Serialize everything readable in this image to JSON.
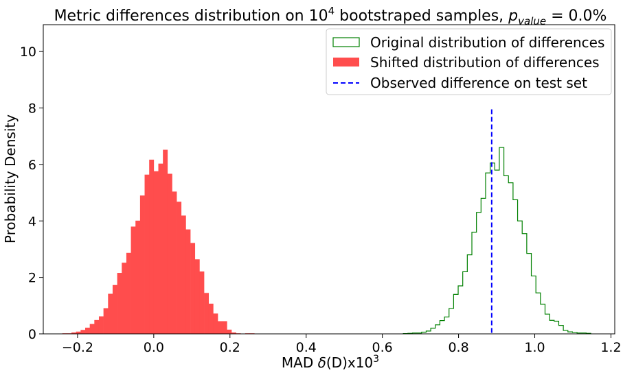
{
  "chart_data": {
    "type": "histogram",
    "title": {
      "prefix": "Metric  differences distribution on 10",
      "sup": "4",
      "mid": " bootstraped samples, ",
      "p": "p",
      "p_sub": "value",
      "suffix": " = 0.0%"
    },
    "xlabel": {
      "prefix": "MAD ",
      "delta": "δ",
      "mid": "(D)x10",
      "sup": "3"
    },
    "ylabel": "Probability Density",
    "xlim": [
      -0.29,
      1.21
    ],
    "ylim": [
      0,
      10.95
    ],
    "x_ticks": [
      -0.2,
      0.0,
      0.2,
      0.4,
      0.6,
      0.8,
      1.0,
      1.2
    ],
    "x_tick_labels": [
      "−0.2",
      "0.0",
      "0.2",
      "0.4",
      "0.6",
      "0.8",
      "1.0",
      "1.2"
    ],
    "y_ticks": [
      0,
      2,
      4,
      6,
      8,
      10
    ],
    "y_tick_labels": [
      "0",
      "2",
      "4",
      "6",
      "8",
      "10"
    ],
    "grid": false,
    "legend_position": "upper-right",
    "legend": [
      "Original distribution of differences",
      "Shifted distribution of differences",
      "Observed difference on test set"
    ],
    "shifted": {
      "color": "#ff4d4d",
      "bins": [
        [
          -0.24,
          -0.228,
          0.02
        ],
        [
          -0.228,
          -0.216,
          0.02
        ],
        [
          -0.216,
          -0.204,
          0.05
        ],
        [
          -0.204,
          -0.192,
          0.08
        ],
        [
          -0.192,
          -0.18,
          0.14
        ],
        [
          -0.18,
          -0.168,
          0.22
        ],
        [
          -0.168,
          -0.156,
          0.35
        ],
        [
          -0.156,
          -0.144,
          0.49
        ],
        [
          -0.144,
          -0.132,
          0.62
        ],
        [
          -0.132,
          -0.12,
          0.91
        ],
        [
          -0.12,
          -0.108,
          1.42
        ],
        [
          -0.108,
          -0.096,
          1.73
        ],
        [
          -0.096,
          -0.084,
          2.16
        ],
        [
          -0.084,
          -0.072,
          2.52
        ],
        [
          -0.072,
          -0.06,
          2.87
        ],
        [
          -0.06,
          -0.048,
          3.8
        ],
        [
          -0.048,
          -0.036,
          4.01
        ],
        [
          -0.036,
          -0.024,
          4.9
        ],
        [
          -0.024,
          -0.012,
          5.64
        ],
        [
          -0.012,
          0.0,
          6.17
        ],
        [
          0.0,
          0.012,
          5.76
        ],
        [
          0.012,
          0.024,
          6.03
        ],
        [
          0.024,
          0.036,
          6.52
        ],
        [
          0.036,
          0.048,
          5.67
        ],
        [
          0.048,
          0.06,
          5.04
        ],
        [
          0.06,
          0.072,
          4.68
        ],
        [
          0.072,
          0.084,
          4.19
        ],
        [
          0.084,
          0.096,
          3.7
        ],
        [
          0.096,
          0.108,
          3.22
        ],
        [
          0.108,
          0.12,
          2.64
        ],
        [
          0.12,
          0.132,
          2.21
        ],
        [
          0.132,
          0.144,
          1.45
        ],
        [
          0.144,
          0.156,
          1.07
        ],
        [
          0.156,
          0.168,
          0.72
        ],
        [
          0.168,
          0.18,
          0.45
        ],
        [
          0.18,
          0.192,
          0.45
        ],
        [
          0.192,
          0.204,
          0.15
        ],
        [
          0.204,
          0.216,
          0.05
        ],
        [
          0.216,
          0.228,
          0.02
        ],
        [
          0.228,
          0.24,
          0.01
        ],
        [
          0.24,
          0.252,
          0.02
        ],
        [
          0.252,
          0.264,
          0.02
        ]
      ]
    },
    "original": {
      "color": "#008000",
      "bins": [
        [
          0.655,
          0.667,
          0.01
        ],
        [
          0.667,
          0.679,
          0.02
        ],
        [
          0.679,
          0.691,
          0.03
        ],
        [
          0.691,
          0.703,
          0.03
        ],
        [
          0.703,
          0.715,
          0.06
        ],
        [
          0.715,
          0.727,
          0.1
        ],
        [
          0.727,
          0.739,
          0.2
        ],
        [
          0.739,
          0.751,
          0.32
        ],
        [
          0.751,
          0.763,
          0.47
        ],
        [
          0.763,
          0.775,
          0.6
        ],
        [
          0.775,
          0.787,
          0.9
        ],
        [
          0.787,
          0.799,
          1.4
        ],
        [
          0.799,
          0.811,
          1.7
        ],
        [
          0.811,
          0.823,
          2.2
        ],
        [
          0.823,
          0.835,
          2.8
        ],
        [
          0.835,
          0.847,
          3.6
        ],
        [
          0.847,
          0.859,
          4.3
        ],
        [
          0.859,
          0.871,
          4.8
        ],
        [
          0.871,
          0.883,
          5.7
        ],
        [
          0.883,
          0.895,
          6.05
        ],
        [
          0.895,
          0.907,
          5.8
        ],
        [
          0.907,
          0.919,
          6.6
        ],
        [
          0.919,
          0.931,
          5.6
        ],
        [
          0.931,
          0.943,
          5.35
        ],
        [
          0.943,
          0.955,
          4.75
        ],
        [
          0.955,
          0.967,
          4.0
        ],
        [
          0.967,
          0.979,
          3.55
        ],
        [
          0.979,
          0.991,
          2.85
        ],
        [
          0.991,
          1.003,
          2.05
        ],
        [
          1.003,
          1.015,
          1.45
        ],
        [
          1.015,
          1.027,
          1.05
        ],
        [
          1.027,
          1.039,
          0.7
        ],
        [
          1.039,
          1.051,
          0.48
        ],
        [
          1.051,
          1.063,
          0.45
        ],
        [
          1.063,
          1.075,
          0.3
        ],
        [
          1.075,
          1.087,
          0.12
        ],
        [
          1.087,
          1.099,
          0.07
        ],
        [
          1.099,
          1.111,
          0.05
        ],
        [
          1.111,
          1.123,
          0.03
        ],
        [
          1.123,
          1.135,
          0.03
        ],
        [
          1.135,
          1.147,
          0.02
        ]
      ]
    },
    "observed": {
      "x": 0.887,
      "y_top": 7.95,
      "color": "#0000ff"
    }
  }
}
